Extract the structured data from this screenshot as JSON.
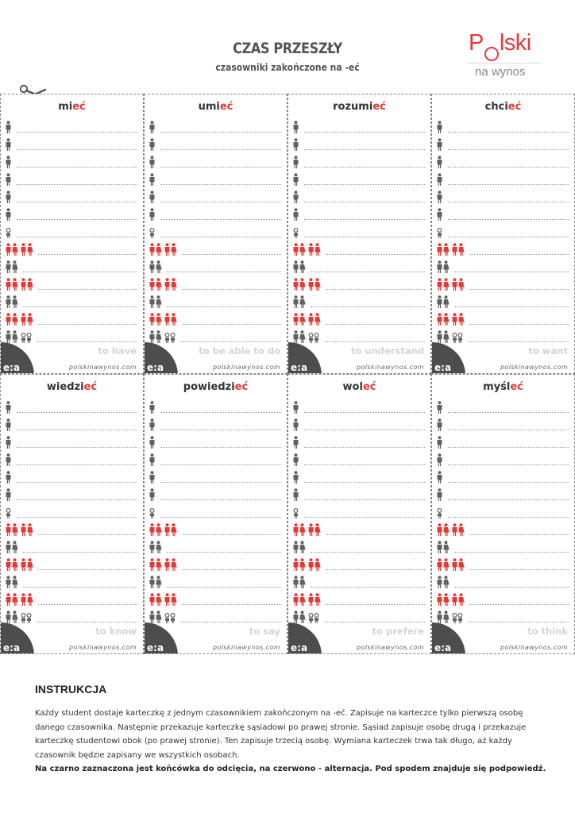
{
  "header": {
    "title": "CZAS PRZESZŁY",
    "subtitle": "czasowniki zakończone na -eć"
  },
  "logo": {
    "name_before": "P",
    "name_circle": "o",
    "name_after": "lski",
    "tagline": "na wynos"
  },
  "colors": {
    "accent": "#e53935",
    "figure": "#616161",
    "badge": "#4d4d4d"
  },
  "person_rows": [
    {
      "kind": "single",
      "color": "dark"
    },
    {
      "kind": "single",
      "color": "dark"
    },
    {
      "kind": "single",
      "color": "dark"
    },
    {
      "kind": "single",
      "color": "dark"
    },
    {
      "kind": "single",
      "color": "dark"
    },
    {
      "kind": "single",
      "color": "dark"
    },
    {
      "kind": "child",
      "color": "dark"
    },
    {
      "kind": "pair2",
      "color": "red"
    },
    {
      "kind": "pair1",
      "color": "dark"
    },
    {
      "kind": "pair2",
      "color": "red"
    },
    {
      "kind": "pair1",
      "color": "dark"
    },
    {
      "kind": "pair2",
      "color": "red"
    },
    {
      "kind": "mixed",
      "color": "dark"
    }
  ],
  "cards": [
    {
      "stem": "mi",
      "ending": "eć",
      "stem_alt": "",
      "english": "to have",
      "site": "polskinawynos.com",
      "badge": "e:a"
    },
    {
      "stem": "umi",
      "ending": "eć",
      "stem_alt": "",
      "english": "to be able to do",
      "site": "polskinawynos.com",
      "badge": "e:a"
    },
    {
      "stem": "rozumi",
      "ending": "eć",
      "stem_alt": "",
      "english": "to understand",
      "site": "polskinawynos.com",
      "badge": "e:a"
    },
    {
      "stem": "chci",
      "ending": "eć",
      "stem_alt": "",
      "english": "to want",
      "site": "polskinawynos.com",
      "badge": "e:a"
    },
    {
      "stem": "wiedzi",
      "ending": "eć",
      "stem_alt": "",
      "english": "to know",
      "site": "polskinawynos.com",
      "badge": "e:a"
    },
    {
      "stem": "powiedzi",
      "ending": "eć",
      "stem_alt": "",
      "english": "to say",
      "site": "polskinawynos.com",
      "badge": "e:a"
    },
    {
      "stem": "wol",
      "ending": "eć",
      "stem_alt": "",
      "english": "to prefere",
      "site": "polskinawynos.com",
      "badge": "e:a"
    },
    {
      "stem": "myśl",
      "ending": "eć",
      "stem_alt": "",
      "english": "to think",
      "site": "polskinawynos.com",
      "badge": "e:a"
    }
  ],
  "instructions": {
    "heading": "INSTRUKCJA",
    "body": "Każdy student dostaje karteczkę z jednym czasownikiem zakończonym na -eć. Zapisuje na karteczce tylko pierwszą osobę danego czasownika. Następnie przekazuje karteczkę sąsiadowi po prawej stronie. Sąsiad zapisuje osobę drugą i przekazuje karteczkę studentowi obok (po prawej stronie). Ten zapisuje trzecią osobę. Wymiana karteczek trwa tak długo, aż każdy czasownik będzie zapisany we wszystkich osobach.",
    "note": "Na czarno zaznaczona jest końcówka do odcięcia, na czerwono - alternacja. Pod spodem znajduje się podpowiedź."
  }
}
